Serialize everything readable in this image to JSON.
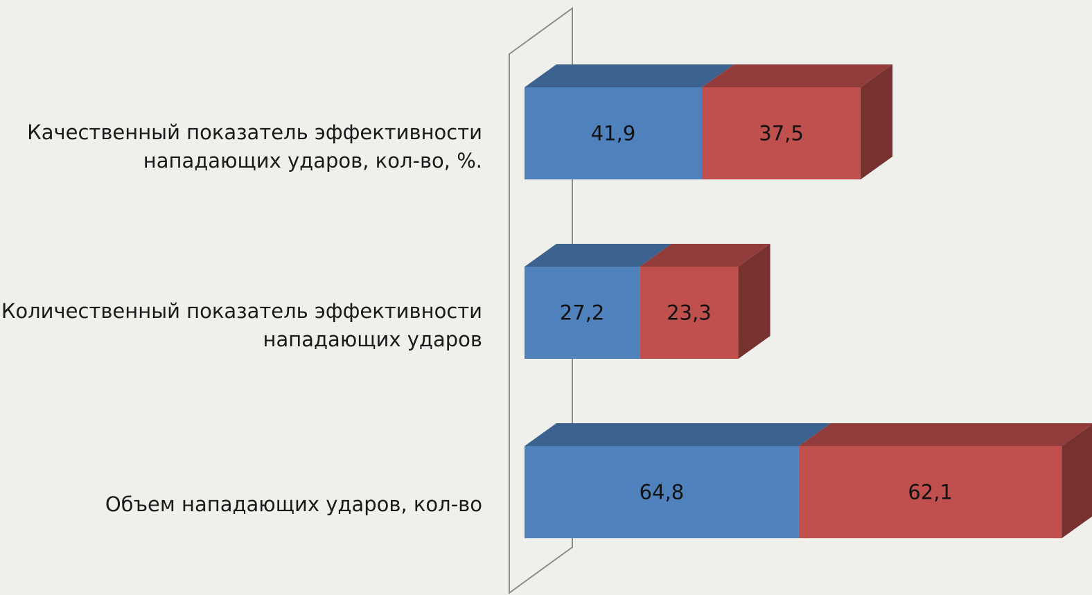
{
  "chart_data": {
    "type": "bar",
    "orientation": "horizontal",
    "stacked": true,
    "style": "3d",
    "categories": [
      "Качественный показатель эффективности\nнападающих ударов, кол-во, %.",
      "Количественный показатель эффективности\nнападающих ударов",
      "Объем нападающих ударов, кол-во"
    ],
    "series": [
      {
        "values": [
          41.9,
          27.2,
          64.8
        ],
        "labels": [
          "41,9",
          "27,2",
          "64,8"
        ],
        "color": "#4f81bd"
      },
      {
        "values": [
          37.5,
          23.3,
          62.1
        ],
        "labels": [
          "37,5",
          "23,3",
          "62,1"
        ],
        "color": "#c0504d"
      }
    ],
    "xlim": [
      0,
      130
    ],
    "grid": false,
    "legend": "none",
    "background": "#eff0ec"
  }
}
